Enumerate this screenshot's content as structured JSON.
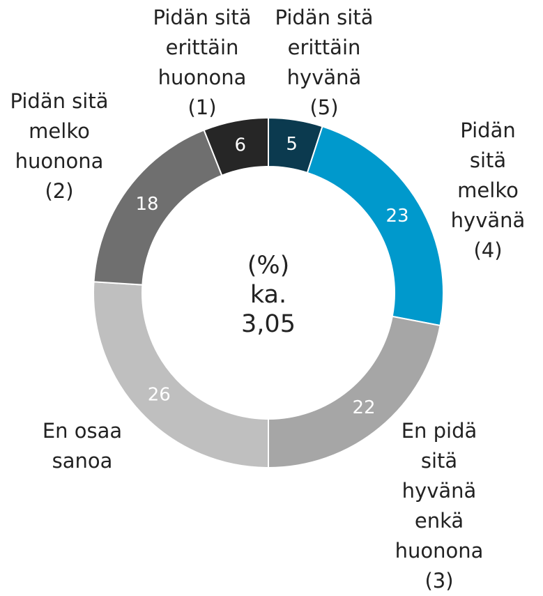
{
  "chart_data": {
    "type": "donut",
    "center_label": "(%)\nka.\n3,05",
    "categories": [
      "Pidän sitä\nerittäin\nhyvänä\n(5)",
      "Pidän sitä\nmelko\nhyvänä\n(4)",
      "En pidä\nsitä\nhyvänä\nenkä\nhuonona\n(3)",
      "En osaa\nsanoa",
      "Pidän sitä\nmelko\nhuonona\n(2)",
      "Pidän sitä\nerittäin\nhuonona\n(1)"
    ],
    "values": [
      5,
      23,
      22,
      26,
      18,
      6
    ],
    "colors": [
      "#0b3a4f",
      "#0099cc",
      "#a6a6a6",
      "#bfbfbf",
      "#6f6f6f",
      "#262626"
    ]
  }
}
